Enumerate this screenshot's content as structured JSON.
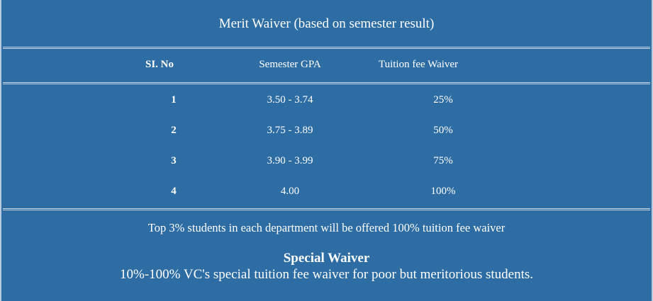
{
  "title": "Merit Waiver (based on semester result)",
  "table": {
    "headers": [
      "SI. No",
      "Semester GPA",
      "Tuition fee Waiver"
    ],
    "rows": [
      {
        "no": "1",
        "gpa": "3.50 - 3.74",
        "waiver": "25%"
      },
      {
        "no": "2",
        "gpa": "3.75 - 3.89",
        "waiver": "50%"
      },
      {
        "no": "3",
        "gpa": "3.90 - 3.99",
        "waiver": "75%"
      },
      {
        "no": "4",
        "gpa": "4.00",
        "waiver": "100%"
      }
    ]
  },
  "note": "Top 3% students in each department will be offered 100% tuition fee waiver",
  "special": {
    "title": "Special Waiver",
    "description": "10%-100% VC's special tuition fee waiver for poor but meritorious students."
  },
  "colors": {
    "background": "#2e6da4",
    "text": "#ffffff"
  }
}
